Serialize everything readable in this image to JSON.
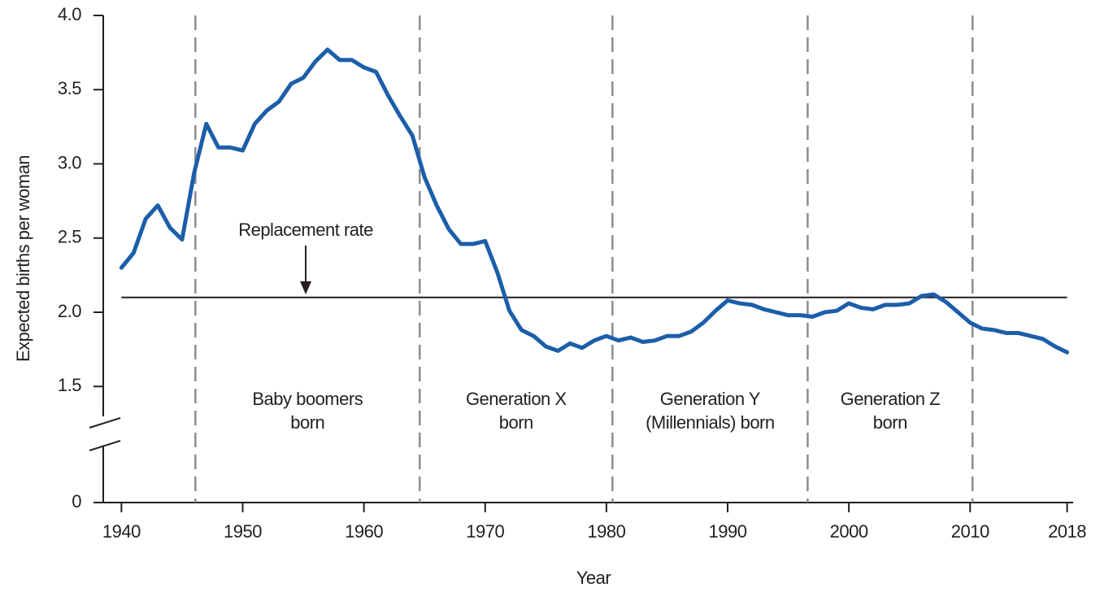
{
  "chart_data": {
    "type": "line",
    "x_label": "Year",
    "y_label": "Expected births per woman",
    "x": [
      1940,
      1941,
      1942,
      1943,
      1944,
      1945,
      1946,
      1947,
      1948,
      1949,
      1950,
      1951,
      1952,
      1953,
      1954,
      1955,
      1956,
      1957,
      1958,
      1959,
      1960,
      1961,
      1962,
      1963,
      1964,
      1965,
      1966,
      1967,
      1968,
      1969,
      1970,
      1971,
      1972,
      1973,
      1974,
      1975,
      1976,
      1977,
      1978,
      1979,
      1980,
      1981,
      1982,
      1983,
      1984,
      1985,
      1986,
      1987,
      1988,
      1989,
      1990,
      1991,
      1992,
      1993,
      1994,
      1995,
      1996,
      1997,
      1998,
      1999,
      2000,
      2001,
      2002,
      2003,
      2004,
      2005,
      2006,
      2007,
      2008,
      2009,
      2010,
      2011,
      2012,
      2013,
      2014,
      2015,
      2016,
      2017,
      2018
    ],
    "series": [
      {
        "color": "#1c5ea9",
        "values": [
          2.3,
          2.4,
          2.63,
          2.72,
          2.57,
          2.49,
          2.94,
          3.27,
          3.11,
          3.11,
          3.09,
          3.27,
          3.36,
          3.42,
          3.54,
          3.58,
          3.69,
          3.77,
          3.7,
          3.7,
          3.65,
          3.62,
          3.46,
          3.32,
          3.19,
          2.91,
          2.72,
          2.56,
          2.46,
          2.46,
          2.48,
          2.27,
          2.01,
          1.88,
          1.84,
          1.77,
          1.74,
          1.79,
          1.76,
          1.81,
          1.84,
          1.81,
          1.83,
          1.8,
          1.81,
          1.84,
          1.84,
          1.87,
          1.93,
          2.01,
          2.08,
          2.06,
          2.05,
          2.02,
          2.0,
          1.98,
          1.98,
          1.97,
          2.0,
          2.01,
          2.06,
          2.03,
          2.02,
          2.05,
          2.05,
          2.06,
          2.11,
          2.12,
          2.07,
          2.0,
          1.93,
          1.89,
          1.88,
          1.86,
          1.86,
          1.84,
          1.82,
          1.77,
          1.73
        ]
      }
    ],
    "xlim": [
      1938.5,
      2018.5
    ],
    "xticks": [
      1940,
      1950,
      1960,
      1970,
      1980,
      1990,
      2000,
      2010,
      2018
    ],
    "ylim": [
      0,
      4
    ],
    "axis_break": [
      0,
      1.2
    ],
    "yticks": [
      {
        "value": 4,
        "label": "4.0"
      },
      3.5,
      {
        "value": 3,
        "label": "3.0"
      },
      2.5,
      {
        "value": 2,
        "label": "2.0"
      },
      1.5,
      0
    ],
    "reference_line": {
      "value": 2.1,
      "label": "Replacement rate",
      "arrow_x": 1955.2
    },
    "generation_lines": [
      1946.1,
      1964.6,
      1980.5,
      1996.6,
      2010.2
    ],
    "eras": [
      [
        "Baby boomers",
        "born"
      ],
      [
        "Generation X",
        "born"
      ],
      [
        "Generation Y",
        "(Millennials) born"
      ],
      [
        "Generation Z",
        "born"
      ]
    ],
    "grid": false
  }
}
